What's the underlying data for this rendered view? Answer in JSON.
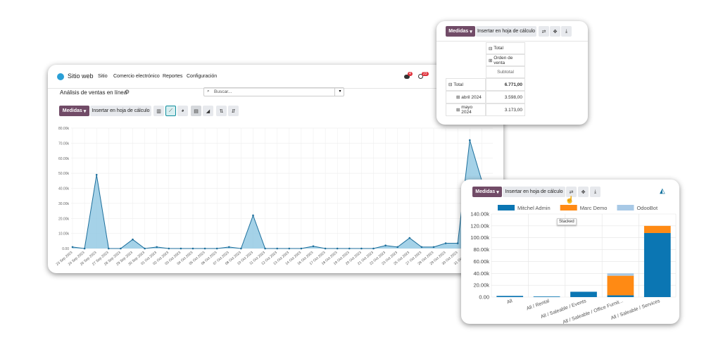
{
  "navbar": {
    "app": "Sitio web",
    "menu": [
      "Sitio",
      "Comercio electrónico",
      "Reportes",
      "Configuración"
    ],
    "badges": [
      "4",
      "23"
    ]
  },
  "main": {
    "title": "Análisis de ventas en línea",
    "search": "Buscar...",
    "measures": "Medidas",
    "insert": "Insertar en hoja de cálculo"
  },
  "pivot": {
    "measures": "Medidas",
    "insert": "Insertar en hoja de cálculo",
    "header": [
      "Total",
      "Orden de venta",
      "Subtotal"
    ],
    "rows": [
      [
        "Total",
        "6.771,00"
      ],
      [
        "abril 2024",
        "3.598,00"
      ],
      [
        "mayo 2024",
        "3.173,00"
      ]
    ]
  },
  "bar_panel": {
    "measures": "Medidas",
    "insert": "Insertar en hoja de cálculo",
    "tooltip": "Stacked"
  },
  "chart_data": [
    {
      "type": "line",
      "color": "#1d6f9c",
      "fill": "#8ec7e2",
      "grid": true,
      "categories": [
        "23 Sep 2023",
        "24 Sep 2023",
        "26 Sep 2023",
        "27 Sep 2023",
        "28 Sep 2023",
        "29 Sep 2023",
        "30 Sep 2023",
        "01 Oct 2023",
        "02 Oct 2023",
        "03 Oct 2023",
        "04 Oct 2023",
        "05 Oct 2023",
        "06 Oct 2023",
        "07 Oct 2023",
        "08 Oct 2023",
        "10 Oct 2023",
        "11 Oct 2023",
        "12 Oct 2023",
        "13 Oct 2023",
        "14 Oct 2023",
        "16 Oct 2023",
        "17 Oct 2023",
        "18 Oct 2023",
        "19 Oct 2023",
        "20 Oct 2023",
        "21 Oct 2023",
        "22 Oct 2023",
        "23 Oct 2023",
        "25 Oct 2023",
        "27 Oct 2023",
        "28 Oct 2023",
        "29 Oct 2023",
        "30 Oct 2023",
        "31 Oct 2023",
        "01 Nov 2023"
      ],
      "values": [
        1000,
        0,
        49000,
        0,
        0,
        6000,
        0,
        1000,
        0,
        0,
        0,
        0,
        0,
        1000,
        0,
        22000,
        0,
        0,
        0,
        0,
        1500,
        0,
        0,
        0,
        0,
        0,
        2000,
        1000,
        7000,
        1000,
        1000,
        3500,
        3500,
        72000,
        45000
      ],
      "ylim": [
        0,
        80000
      ],
      "yticks": [
        {
          "value": 0,
          "label": "0.00"
        },
        {
          "value": 10000,
          "label": "10.00k"
        },
        {
          "value": 20000,
          "label": "20.00k"
        },
        {
          "value": 30000,
          "label": "30.00k"
        },
        {
          "value": 40000,
          "label": "40.00k"
        },
        {
          "value": 50000,
          "label": "50.00k"
        },
        {
          "value": 60000,
          "label": "60.00k"
        },
        {
          "value": 70000,
          "label": "70.00k"
        },
        {
          "value": 80000,
          "label": "80.00k"
        }
      ]
    },
    {
      "type": "bar",
      "stacked": true,
      "grid": true,
      "categories": [
        "All",
        "All / Rental",
        "All / Saleable / Events",
        "All / Saleable / Office Furnit...",
        "All / Saleable / Services"
      ],
      "series": [
        {
          "name": "Mitchel Admin",
          "color": "#0b76b3",
          "values": [
            2000,
            1000,
            9000,
            3000,
            108000
          ]
        },
        {
          "name": "Marc Demo",
          "color": "#ff8a14",
          "values": [
            0,
            0,
            0,
            33000,
            12000
          ]
        },
        {
          "name": "OdooBot",
          "color": "#a8c9e6",
          "values": [
            0,
            0,
            0,
            4000,
            0
          ]
        }
      ],
      "ylim": [
        0,
        140000
      ],
      "yticks": [
        {
          "value": 0,
          "label": "0.00"
        },
        {
          "value": 20000,
          "label": "20.00k"
        },
        {
          "value": 40000,
          "label": "40.00k"
        },
        {
          "value": 60000,
          "label": "60.00k"
        },
        {
          "value": 80000,
          "label": "80.00k"
        },
        {
          "value": 100000,
          "label": "100.00k"
        },
        {
          "value": 120000,
          "label": "120.00k"
        },
        {
          "value": 140000,
          "label": "140.00k"
        }
      ]
    }
  ]
}
